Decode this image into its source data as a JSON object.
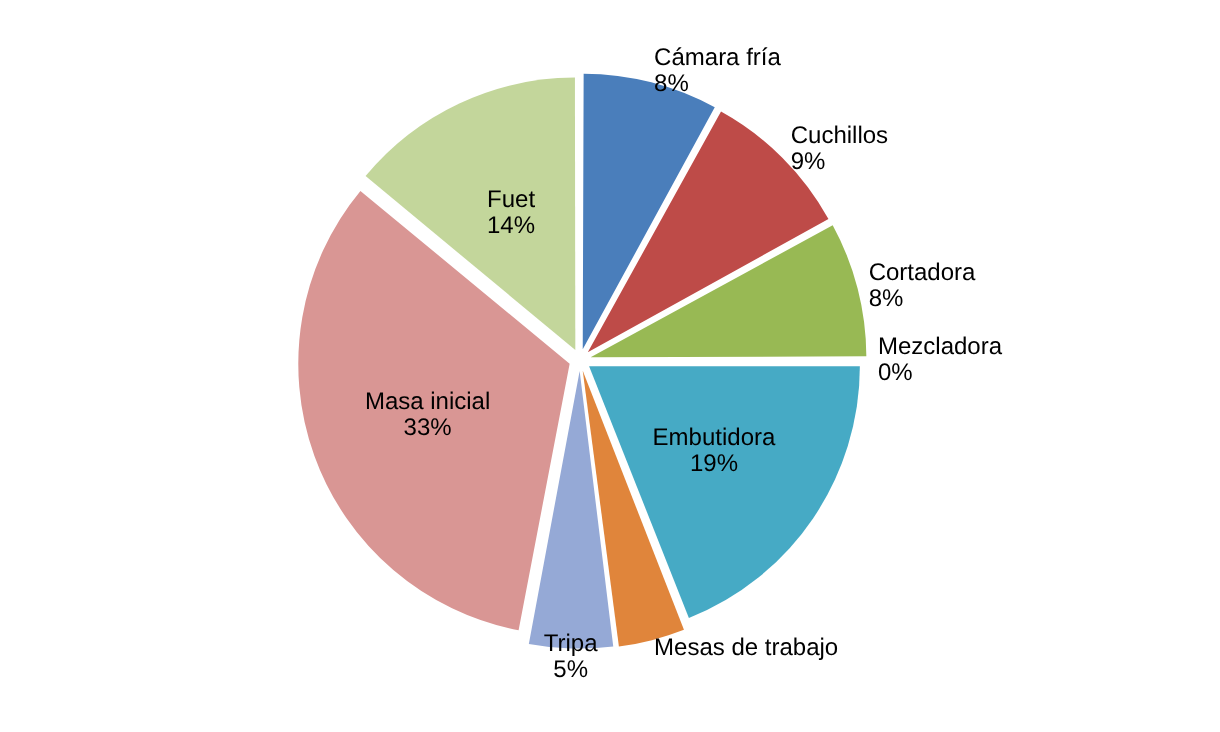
{
  "chart_data": {
    "type": "pie",
    "categories": [
      "Cámara fría",
      "Cuchillos",
      "Cortadora",
      "Mezcladora",
      "Embutidora",
      "Mesas de trabajo",
      "Tripa",
      "Masa inicial",
      "Fuet"
    ],
    "values": [
      8,
      9,
      8,
      0,
      19,
      4,
      5,
      33,
      14
    ],
    "value_labels": [
      "8%",
      "9%",
      "8%",
      "0%",
      "19%",
      null,
      "5%",
      "33%",
      "14%"
    ],
    "colors": [
      "#4a7ebb",
      "#be4b48",
      "#98b954",
      "#7d60a0",
      "#46aac5",
      "#e0853b",
      "#95a9d6",
      "#d99694",
      "#c3d69b"
    ],
    "legend": false
  }
}
